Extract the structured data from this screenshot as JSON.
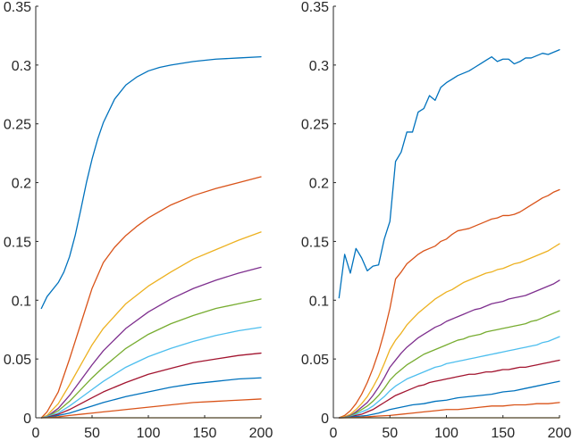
{
  "chart_data": [
    {
      "type": "line",
      "title": "",
      "xlabel": "",
      "ylabel": "",
      "xlim": [
        0,
        200
      ],
      "ylim": [
        0,
        0.35
      ],
      "xticks": [
        0,
        50,
        100,
        150,
        200
      ],
      "yticks": [
        0,
        0.05,
        0.1,
        0.15,
        0.2,
        0.25,
        0.3,
        0.35
      ],
      "xtick_labels": [
        "0",
        "50",
        "100",
        "150",
        "200"
      ],
      "ytick_labels": [
        "0",
        "0.05",
        "0.1",
        "0.15",
        "0.2",
        "0.25",
        "0.3",
        "0.35"
      ],
      "grid": false,
      "series": [
        {
          "color": "#0072bd",
          "x": [
            5,
            10,
            20,
            25,
            30,
            35,
            40,
            45,
            50,
            55,
            60,
            70,
            80,
            90,
            100,
            110,
            120,
            140,
            160,
            180,
            200
          ],
          "y": [
            0.093,
            0.103,
            0.115,
            0.124,
            0.137,
            0.155,
            0.177,
            0.2,
            0.22,
            0.237,
            0.251,
            0.271,
            0.283,
            0.29,
            0.295,
            0.298,
            0.3,
            0.303,
            0.305,
            0.306,
            0.307
          ]
        },
        {
          "color": "#d95319",
          "x": [
            5,
            10,
            20,
            30,
            40,
            50,
            60,
            70,
            80,
            90,
            100,
            120,
            140,
            160,
            180,
            200
          ],
          "y": [
            0.0,
            0.005,
            0.022,
            0.05,
            0.08,
            0.11,
            0.132,
            0.145,
            0.155,
            0.163,
            0.17,
            0.181,
            0.189,
            0.195,
            0.2,
            0.205
          ]
        },
        {
          "color": "#edb120",
          "x": [
            5,
            10,
            20,
            30,
            40,
            50,
            60,
            80,
            100,
            120,
            140,
            160,
            180,
            200
          ],
          "y": [
            0.0,
            0.002,
            0.012,
            0.028,
            0.045,
            0.062,
            0.076,
            0.097,
            0.112,
            0.124,
            0.135,
            0.143,
            0.151,
            0.158
          ]
        },
        {
          "color": "#7e2f8e",
          "x": [
            5,
            10,
            20,
            30,
            40,
            50,
            60,
            80,
            100,
            120,
            140,
            160,
            180,
            200
          ],
          "y": [
            0.0,
            0.001,
            0.008,
            0.019,
            0.032,
            0.045,
            0.057,
            0.076,
            0.09,
            0.101,
            0.11,
            0.117,
            0.123,
            0.128
          ]
        },
        {
          "color": "#77ac30",
          "x": [
            5,
            10,
            20,
            30,
            40,
            50,
            60,
            80,
            100,
            120,
            140,
            160,
            180,
            200
          ],
          "y": [
            0.0,
            0.001,
            0.006,
            0.014,
            0.024,
            0.034,
            0.043,
            0.059,
            0.071,
            0.08,
            0.087,
            0.093,
            0.097,
            0.101
          ]
        },
        {
          "color": "#4dbeee",
          "x": [
            5,
            10,
            20,
            30,
            40,
            50,
            60,
            80,
            100,
            120,
            140,
            160,
            180,
            200
          ],
          "y": [
            0.0,
            0.001,
            0.004,
            0.01,
            0.017,
            0.024,
            0.031,
            0.043,
            0.052,
            0.059,
            0.065,
            0.07,
            0.074,
            0.077
          ]
        },
        {
          "color": "#a2142f",
          "x": [
            5,
            10,
            20,
            30,
            40,
            50,
            60,
            80,
            100,
            120,
            140,
            160,
            180,
            200
          ],
          "y": [
            0.0,
            0.0005,
            0.003,
            0.007,
            0.012,
            0.017,
            0.022,
            0.03,
            0.037,
            0.042,
            0.047,
            0.05,
            0.053,
            0.055
          ]
        },
        {
          "color": "#0072bd",
          "x": [
            5,
            10,
            20,
            30,
            40,
            50,
            60,
            80,
            100,
            120,
            140,
            160,
            180,
            200
          ],
          "y": [
            0.0,
            0.0003,
            0.002,
            0.004,
            0.007,
            0.01,
            0.013,
            0.018,
            0.022,
            0.026,
            0.029,
            0.031,
            0.033,
            0.034
          ]
        },
        {
          "color": "#d95319",
          "x": [
            5,
            10,
            20,
            30,
            40,
            50,
            60,
            80,
            100,
            120,
            140,
            160,
            180,
            200
          ],
          "y": [
            0.0,
            0.0001,
            0.0008,
            0.002,
            0.003,
            0.004,
            0.005,
            0.007,
            0.009,
            0.011,
            0.013,
            0.014,
            0.015,
            0.016
          ]
        },
        {
          "color": "#edb120",
          "x": [
            5,
            200
          ],
          "y": [
            0.0,
            0.0
          ]
        }
      ]
    },
    {
      "type": "line",
      "title": "",
      "xlabel": "",
      "ylabel": "",
      "xlim": [
        0,
        200
      ],
      "ylim": [
        0,
        0.35
      ],
      "xticks": [
        0,
        50,
        100,
        150,
        200
      ],
      "yticks": [
        0,
        0.05,
        0.1,
        0.15,
        0.2,
        0.25,
        0.3,
        0.35
      ],
      "xtick_labels": [
        "0",
        "50",
        "100",
        "150",
        "200"
      ],
      "ytick_labels": [
        "0",
        "0.05",
        "0.1",
        "0.15",
        "0.2",
        "0.25",
        "0.3",
        "0.35"
      ],
      "grid": false,
      "series": [
        {
          "color": "#0072bd",
          "x": [
            5,
            10,
            15,
            20,
            25,
            30,
            35,
            40,
            45,
            50,
            55,
            60,
            65,
            70,
            75,
            80,
            85,
            90,
            95,
            100,
            105,
            110,
            115,
            120,
            125,
            130,
            135,
            140,
            145,
            150,
            155,
            160,
            165,
            170,
            175,
            180,
            185,
            190,
            195,
            200
          ],
          "y": [
            0.102,
            0.139,
            0.123,
            0.144,
            0.136,
            0.125,
            0.129,
            0.13,
            0.152,
            0.167,
            0.218,
            0.226,
            0.243,
            0.243,
            0.26,
            0.263,
            0.274,
            0.27,
            0.281,
            0.285,
            0.288,
            0.291,
            0.293,
            0.295,
            0.298,
            0.301,
            0.304,
            0.307,
            0.303,
            0.305,
            0.305,
            0.301,
            0.303,
            0.306,
            0.306,
            0.308,
            0.31,
            0.309,
            0.311,
            0.313
          ]
        },
        {
          "color": "#d95319",
          "x": [
            5,
            10,
            15,
            20,
            25,
            30,
            35,
            40,
            45,
            50,
            55,
            60,
            65,
            70,
            75,
            80,
            85,
            90,
            95,
            100,
            105,
            110,
            115,
            120,
            125,
            130,
            135,
            140,
            145,
            150,
            155,
            160,
            165,
            170,
            175,
            180,
            185,
            190,
            195,
            200
          ],
          "y": [
            0.0,
            0.002,
            0.006,
            0.012,
            0.02,
            0.03,
            0.042,
            0.056,
            0.073,
            0.093,
            0.118,
            0.124,
            0.131,
            0.135,
            0.139,
            0.142,
            0.144,
            0.146,
            0.15,
            0.152,
            0.156,
            0.159,
            0.16,
            0.161,
            0.163,
            0.165,
            0.167,
            0.169,
            0.17,
            0.172,
            0.172,
            0.173,
            0.175,
            0.178,
            0.181,
            0.184,
            0.187,
            0.189,
            0.192,
            0.194
          ]
        },
        {
          "color": "#edb120",
          "x": [
            5,
            10,
            15,
            20,
            25,
            30,
            35,
            40,
            45,
            50,
            55,
            60,
            65,
            70,
            75,
            80,
            85,
            90,
            95,
            100,
            105,
            110,
            115,
            120,
            125,
            130,
            135,
            140,
            145,
            150,
            155,
            160,
            165,
            170,
            175,
            180,
            185,
            190,
            195,
            200
          ],
          "y": [
            0.0,
            0.001,
            0.003,
            0.007,
            0.012,
            0.018,
            0.026,
            0.035,
            0.046,
            0.058,
            0.066,
            0.072,
            0.079,
            0.084,
            0.089,
            0.093,
            0.097,
            0.101,
            0.104,
            0.107,
            0.109,
            0.112,
            0.115,
            0.117,
            0.119,
            0.121,
            0.123,
            0.124,
            0.126,
            0.127,
            0.129,
            0.131,
            0.132,
            0.134,
            0.136,
            0.138,
            0.14,
            0.142,
            0.145,
            0.148
          ]
        },
        {
          "color": "#7e2f8e",
          "x": [
            5,
            10,
            15,
            20,
            25,
            30,
            35,
            40,
            45,
            50,
            55,
            60,
            65,
            70,
            75,
            80,
            85,
            90,
            95,
            100,
            105,
            110,
            115,
            120,
            125,
            130,
            135,
            140,
            145,
            150,
            155,
            160,
            165,
            170,
            175,
            180,
            185,
            190,
            195,
            200
          ],
          "y": [
            0.0,
            0.0005,
            0.002,
            0.005,
            0.009,
            0.013,
            0.019,
            0.026,
            0.034,
            0.043,
            0.049,
            0.055,
            0.06,
            0.064,
            0.068,
            0.071,
            0.074,
            0.077,
            0.079,
            0.082,
            0.084,
            0.086,
            0.088,
            0.09,
            0.092,
            0.093,
            0.095,
            0.097,
            0.098,
            0.099,
            0.101,
            0.102,
            0.103,
            0.104,
            0.106,
            0.108,
            0.11,
            0.112,
            0.114,
            0.117
          ]
        },
        {
          "color": "#77ac30",
          "x": [
            5,
            10,
            15,
            20,
            25,
            30,
            35,
            40,
            45,
            50,
            55,
            60,
            65,
            70,
            75,
            80,
            85,
            90,
            95,
            100,
            105,
            110,
            115,
            120,
            125,
            130,
            135,
            140,
            145,
            150,
            155,
            160,
            165,
            170,
            175,
            180,
            185,
            190,
            195,
            200
          ],
          "y": [
            0.0,
            0.0003,
            0.0015,
            0.004,
            0.007,
            0.01,
            0.014,
            0.019,
            0.025,
            0.032,
            0.037,
            0.041,
            0.045,
            0.048,
            0.051,
            0.054,
            0.056,
            0.058,
            0.06,
            0.062,
            0.064,
            0.066,
            0.067,
            0.069,
            0.07,
            0.071,
            0.073,
            0.074,
            0.075,
            0.076,
            0.077,
            0.078,
            0.079,
            0.08,
            0.082,
            0.083,
            0.085,
            0.087,
            0.089,
            0.091
          ]
        },
        {
          "color": "#4dbeee",
          "x": [
            5,
            10,
            15,
            20,
            25,
            30,
            35,
            40,
            45,
            50,
            55,
            60,
            65,
            70,
            75,
            80,
            85,
            90,
            95,
            100,
            105,
            110,
            115,
            120,
            125,
            130,
            135,
            140,
            145,
            150,
            155,
            160,
            165,
            170,
            175,
            180,
            185,
            190,
            195,
            200
          ],
          "y": [
            0.0,
            0.0002,
            0.001,
            0.003,
            0.005,
            0.007,
            0.01,
            0.014,
            0.018,
            0.023,
            0.027,
            0.03,
            0.033,
            0.035,
            0.037,
            0.039,
            0.041,
            0.043,
            0.044,
            0.046,
            0.047,
            0.048,
            0.049,
            0.05,
            0.051,
            0.052,
            0.053,
            0.054,
            0.055,
            0.056,
            0.057,
            0.058,
            0.059,
            0.06,
            0.061,
            0.062,
            0.064,
            0.065,
            0.067,
            0.069
          ]
        },
        {
          "color": "#a2142f",
          "x": [
            5,
            10,
            15,
            20,
            25,
            30,
            35,
            40,
            45,
            50,
            55,
            60,
            65,
            70,
            75,
            80,
            85,
            90,
            95,
            100,
            105,
            110,
            115,
            120,
            125,
            130,
            135,
            140,
            145,
            150,
            155,
            160,
            165,
            170,
            175,
            180,
            185,
            190,
            195,
            200
          ],
          "y": [
            0.0,
            0.0001,
            0.0007,
            0.002,
            0.003,
            0.005,
            0.007,
            0.01,
            0.013,
            0.016,
            0.019,
            0.021,
            0.023,
            0.025,
            0.027,
            0.028,
            0.03,
            0.031,
            0.032,
            0.033,
            0.034,
            0.035,
            0.036,
            0.037,
            0.037,
            0.038,
            0.039,
            0.039,
            0.04,
            0.041,
            0.041,
            0.042,
            0.043,
            0.043,
            0.044,
            0.045,
            0.046,
            0.047,
            0.048,
            0.049
          ]
        },
        {
          "color": "#0072bd",
          "x": [
            5,
            10,
            20,
            30,
            40,
            50,
            60,
            70,
            80,
            90,
            100,
            110,
            120,
            130,
            140,
            150,
            160,
            170,
            180,
            190,
            200
          ],
          "y": [
            0.0,
            0.0001,
            0.001,
            0.002,
            0.004,
            0.007,
            0.009,
            0.011,
            0.012,
            0.014,
            0.015,
            0.017,
            0.018,
            0.019,
            0.02,
            0.022,
            0.023,
            0.025,
            0.027,
            0.029,
            0.031
          ]
        },
        {
          "color": "#d95319",
          "x": [
            5,
            10,
            20,
            30,
            40,
            50,
            60,
            70,
            80,
            90,
            100,
            110,
            120,
            130,
            140,
            150,
            160,
            170,
            180,
            190,
            200
          ],
          "y": [
            0.0,
            0.0,
            0.0003,
            0.0008,
            0.0015,
            0.002,
            0.003,
            0.004,
            0.005,
            0.006,
            0.007,
            0.007,
            0.008,
            0.009,
            0.01,
            0.01,
            0.011,
            0.011,
            0.012,
            0.012,
            0.013
          ]
        },
        {
          "color": "#edb120",
          "x": [
            5,
            200
          ],
          "y": [
            0.0,
            0.0
          ]
        }
      ]
    }
  ]
}
